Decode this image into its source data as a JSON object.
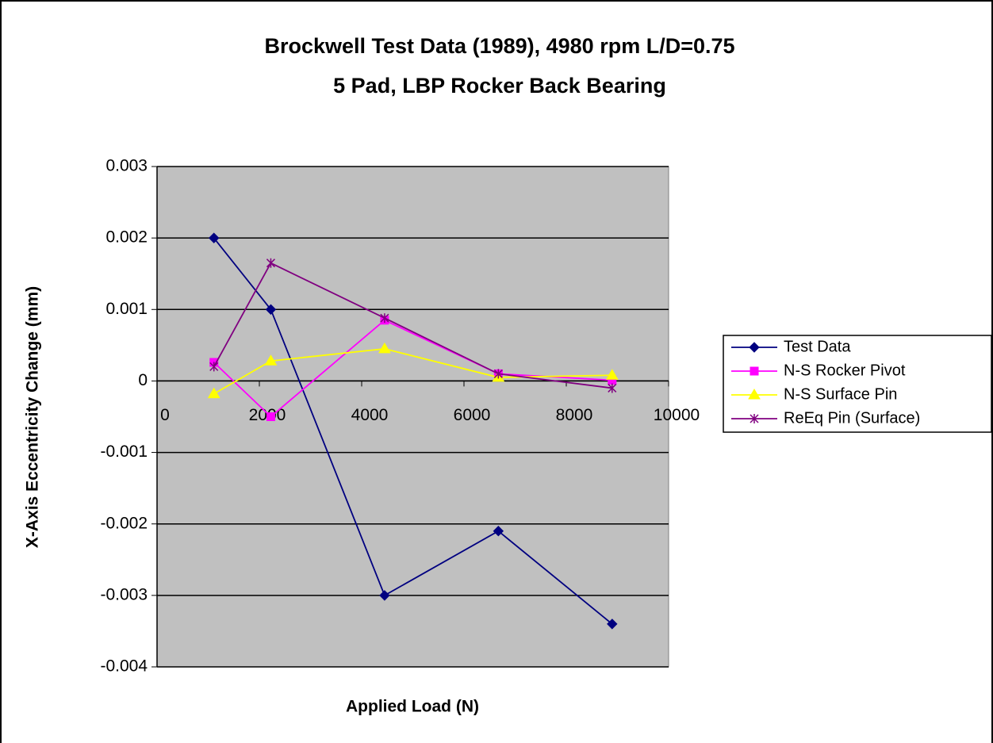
{
  "chart_data": {
    "type": "line",
    "title": [
      "Brockwell Test Data (1989), 4980 rpm L/D=0.75",
      "5 Pad, LBP Rocker Back Bearing"
    ],
    "x_label": "Applied Load (N)",
    "y_label": "X-Axis Eccentricity Change (mm)",
    "x": [
      1112,
      2224,
      4448,
      6672,
      8896
    ],
    "series": [
      {
        "name": "Test Data",
        "color": "#000080",
        "marker": "diamond",
        "values": [
          0.002,
          0.001,
          -0.003,
          -0.0021,
          -0.0034
        ]
      },
      {
        "name": "N-S Rocker Pivot",
        "color": "#ff00ff",
        "marker": "square",
        "values": [
          0.00026,
          -0.0005,
          0.00085,
          0.0001,
          1e-05
        ]
      },
      {
        "name": "N-S Surface Pin",
        "color": "#ffff00",
        "marker": "triangle",
        "values": [
          -0.00018,
          0.00028,
          0.00045,
          5e-05,
          8e-05
        ]
      },
      {
        "name": "ReEq Pin (Surface)",
        "color": "#800080",
        "marker": "star",
        "values": [
          0.0002,
          0.00165,
          0.00088,
          0.0001,
          -0.0001
        ]
      }
    ],
    "xlim": [
      0,
      10000
    ],
    "xticks": [
      0,
      2000,
      4000,
      6000,
      8000,
      10000
    ],
    "ylim": [
      -0.004,
      0.003
    ],
    "yticks": [
      -0.004,
      -0.003,
      -0.002,
      -0.001,
      0,
      0.001,
      0.002,
      0.003
    ],
    "grid": true,
    "legend": "right",
    "plot_background": "#c0c0c0"
  }
}
